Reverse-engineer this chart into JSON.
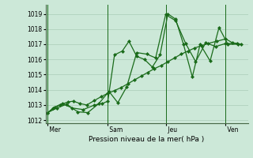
{
  "bg_color": "#cce8d8",
  "grid_color": "#aaccb8",
  "line_color": "#1a6b1a",
  "marker_color": "#1a6b1a",
  "xlabel": "Pression niveau de la mer( hPa )",
  "ylim": [
    1011.8,
    1019.6
  ],
  "yticks": [
    1012,
    1013,
    1014,
    1015,
    1016,
    1017,
    1018,
    1019
  ],
  "day_labels": [
    " Mer",
    " Sam",
    " Jeu",
    " Ven"
  ],
  "day_positions": [
    0.0,
    2.67,
    5.33,
    8.0
  ],
  "xlim": [
    -0.1,
    9.0
  ],
  "series1_x": [
    0.0,
    0.25,
    0.55,
    0.9,
    1.15,
    1.45,
    1.75,
    2.1,
    2.4,
    2.67,
    3.0,
    3.3,
    3.6,
    3.9,
    4.2,
    4.5,
    4.8,
    5.1,
    5.4,
    5.7,
    6.0,
    6.3,
    6.6,
    6.9,
    7.2,
    7.6,
    8.0,
    8.3,
    8.7
  ],
  "series1_y": [
    1012.5,
    1012.8,
    1013.0,
    1013.2,
    1013.25,
    1013.1,
    1013.0,
    1013.3,
    1013.55,
    1013.75,
    1013.95,
    1014.15,
    1014.4,
    1014.65,
    1014.9,
    1015.15,
    1015.4,
    1015.6,
    1015.85,
    1016.1,
    1016.35,
    1016.55,
    1016.75,
    1016.9,
    1017.05,
    1017.2,
    1017.35,
    1017.1,
    1017.0
  ],
  "series2_x": [
    0.0,
    0.3,
    0.65,
    1.1,
    1.6,
    2.1,
    2.45,
    2.7,
    3.0,
    3.35,
    3.65,
    4.0,
    4.35,
    4.7,
    5.05,
    5.4,
    5.75,
    6.1,
    6.5,
    6.85,
    7.3,
    7.7,
    8.1,
    8.55
  ],
  "series2_y": [
    1012.5,
    1012.85,
    1013.1,
    1012.8,
    1012.7,
    1013.0,
    1013.1,
    1013.25,
    1016.3,
    1016.55,
    1017.2,
    1016.2,
    1016.0,
    1015.5,
    1016.3,
    1019.0,
    1018.65,
    1017.0,
    1014.85,
    1017.0,
    1015.9,
    1018.1,
    1017.0,
    1017.0
  ],
  "series3_x": [
    0.0,
    0.4,
    0.85,
    1.35,
    1.8,
    2.3,
    2.75,
    3.15,
    3.55,
    4.0,
    4.45,
    4.85,
    5.3,
    5.75,
    6.2,
    6.65,
    7.1,
    7.55,
    8.0,
    8.5
  ],
  "series3_y": [
    1012.5,
    1012.8,
    1013.05,
    1012.55,
    1012.5,
    1013.1,
    1013.9,
    1013.15,
    1014.2,
    1016.45,
    1016.35,
    1016.1,
    1018.95,
    1018.55,
    1017.05,
    1015.85,
    1017.1,
    1016.85,
    1017.05,
    1017.05
  ],
  "vline_positions": [
    0.0,
    2.67,
    5.33,
    8.0
  ]
}
